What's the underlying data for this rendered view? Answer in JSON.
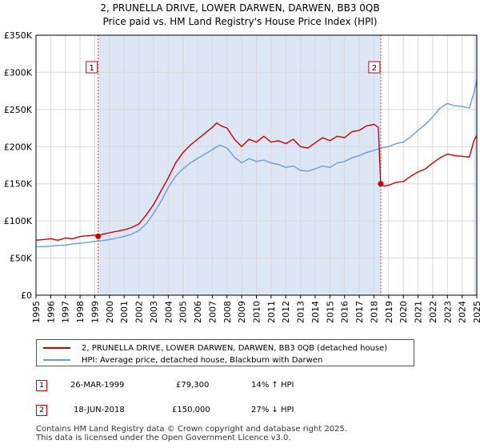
{
  "title_line1": "2, PRUNELLA DRIVE, LOWER DARWEN, DARWEN, BB3 0QB",
  "title_line2": "Price paid vs. HM Land Registry's House Price Index (HPI)",
  "chart_data": {
    "type": "line",
    "ylim": [
      0,
      350000
    ],
    "xlim": [
      1995,
      2025
    ],
    "y_ticks": [
      0,
      50000,
      100000,
      150000,
      200000,
      250000,
      300000,
      350000
    ],
    "y_tick_labels": [
      "£0",
      "£50K",
      "£100K",
      "£150K",
      "£200K",
      "£250K",
      "£300K",
      "£350K"
    ],
    "x_tick_labels": [
      "1995",
      "1996",
      "1997",
      "1998",
      "1999",
      "2000",
      "2001",
      "2002",
      "2003",
      "2004",
      "2005",
      "2006",
      "2007",
      "2008",
      "2009",
      "2010",
      "2011",
      "2012",
      "2013",
      "2014",
      "2015",
      "2016",
      "2017",
      "2018",
      "2019",
      "2020",
      "2021",
      "2022",
      "2023",
      "2024",
      "2025"
    ],
    "colors": {
      "property": "#cc0000",
      "hpi": "#6a9fd4",
      "shade": "#dde6f4"
    },
    "shaded_regions": [
      [
        1999.23,
        2018.46
      ],
      [
        2024.8,
        2025
      ]
    ],
    "series": [
      {
        "name": "2, PRUNELLA DRIVE, LOWER DARWEN, DARWEN, BB3 0QB (detached house)",
        "x": [
          1995,
          1995.5,
          1996,
          1996.5,
          1997,
          1997.5,
          1998,
          1998.5,
          1999,
          1999.23,
          1999.5,
          2000,
          2000.5,
          2001,
          2001.5,
          2002,
          2002.5,
          2003,
          2003.5,
          2004,
          2004.5,
          2005,
          2005.5,
          2006,
          2006.5,
          2007,
          2007.3,
          2007.6,
          2008,
          2008.5,
          2009,
          2009.5,
          2010,
          2010.5,
          2011,
          2011.5,
          2012,
          2012.5,
          2013,
          2013.5,
          2014,
          2014.5,
          2015,
          2015.5,
          2016,
          2016.5,
          2017,
          2017.5,
          2018,
          2018.3,
          2018.46,
          2018.7,
          2019,
          2019.5,
          2020,
          2020.5,
          2021,
          2021.5,
          2022,
          2022.5,
          2023,
          2023.5,
          2024,
          2024.5,
          2024.8,
          2025
        ],
        "values": [
          74000,
          75000,
          76000,
          74000,
          77000,
          76000,
          79000,
          80000,
          81000,
          79300,
          82000,
          84000,
          86000,
          88000,
          91000,
          96000,
          108000,
          122000,
          140000,
          158000,
          178000,
          192000,
          202000,
          210000,
          218000,
          226000,
          232000,
          228000,
          225000,
          210000,
          200000,
          210000,
          206000,
          214000,
          206000,
          208000,
          204000,
          210000,
          200000,
          198000,
          205000,
          212000,
          208000,
          214000,
          212000,
          220000,
          222000,
          228000,
          230000,
          226000,
          150000,
          147000,
          148000,
          152000,
          153000,
          160000,
          166000,
          170000,
          178000,
          185000,
          190000,
          188000,
          187000,
          186000,
          208000,
          215000
        ]
      },
      {
        "name": "HPI: Average price, detached house, Blackburn with Darwen",
        "x": [
          1995,
          1995.5,
          1996,
          1996.5,
          1997,
          1997.5,
          1998,
          1998.5,
          1999,
          1999.5,
          2000,
          2000.5,
          2001,
          2001.5,
          2002,
          2002.5,
          2003,
          2003.5,
          2004,
          2004.5,
          2005,
          2005.5,
          2006,
          2006.5,
          2007,
          2007.5,
          2008,
          2008.5,
          2009,
          2009.5,
          2010,
          2010.5,
          2011,
          2011.5,
          2012,
          2012.5,
          2013,
          2013.5,
          2014,
          2014.5,
          2015,
          2015.5,
          2016,
          2016.5,
          2017,
          2017.5,
          2018,
          2018.5,
          2019,
          2019.5,
          2020,
          2020.5,
          2021,
          2021.5,
          2022,
          2022.5,
          2023,
          2023.5,
          2024,
          2024.5,
          2024.8,
          2025
        ],
        "values": [
          65000,
          65500,
          66000,
          67000,
          67500,
          69000,
          70000,
          71000,
          72500,
          73500,
          75000,
          77000,
          79000,
          82000,
          87000,
          96000,
          110000,
          126000,
          145000,
          160000,
          170000,
          178000,
          184000,
          190000,
          196000,
          202000,
          198000,
          186000,
          178000,
          184000,
          180000,
          182000,
          178000,
          176000,
          172000,
          174000,
          168000,
          167000,
          170000,
          174000,
          172000,
          178000,
          180000,
          185000,
          188000,
          192000,
          195000,
          198000,
          200000,
          204000,
          206000,
          213000,
          222000,
          230000,
          240000,
          252000,
          258000,
          255000,
          254000,
          252000,
          272000,
          290000
        ]
      }
    ],
    "sales": [
      {
        "label": "1",
        "x": 1999.23,
        "value": 79300,
        "date": "26-MAR-1999",
        "price": "£79,300",
        "hpi_diff": "14% ↑ HPI"
      },
      {
        "label": "2",
        "x": 2018.46,
        "value": 150000,
        "date": "18-JUN-2018",
        "price": "£150,000",
        "hpi_diff": "27% ↓ HPI"
      }
    ]
  },
  "legend": {
    "property": "2, PRUNELLA DRIVE, LOWER DARWEN, DARWEN, BB3 0QB (detached house)",
    "hpi": "HPI: Average price, detached house, Blackburn with Darwen"
  },
  "footer_line1": "Contains HM Land Registry data © Crown copyright and database right 2025.",
  "footer_line2": "This data is licensed under the Open Government Licence v3.0."
}
